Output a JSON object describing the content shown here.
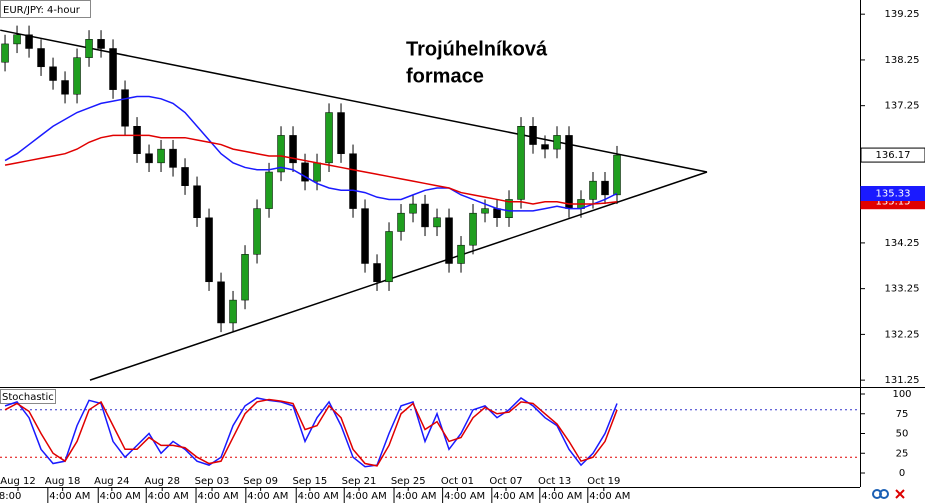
{
  "chart_data": [
    {
      "type": "candlestick",
      "title": "EUR/JPY: 4-hour",
      "annotation": [
        "Trojúhelníková",
        "formace"
      ],
      "up_color": "#1f9e1f",
      "down_color": "#000000",
      "xlim": [
        -0.42,
        71.25
      ],
      "ylim": [
        131.1,
        139.56
      ],
      "yticks": [
        131.25,
        132.25,
        133.25,
        134.25,
        137.25,
        138.25,
        139.25
      ],
      "open": [
        138.2,
        138.6,
        138.8,
        138.5,
        138.1,
        137.8,
        137.5,
        138.3,
        138.7,
        138.5,
        137.6,
        136.8,
        136.2,
        136.0,
        136.3,
        135.9,
        135.5,
        134.8,
        133.4,
        132.5,
        133.0,
        134.0,
        135.0,
        135.8,
        136.6,
        136.0,
        135.6,
        136.0,
        137.1,
        136.2,
        135.0,
        133.8,
        133.4,
        134.5,
        134.9,
        135.1,
        134.6,
        134.8,
        133.8,
        134.2,
        134.9,
        135.0,
        134.8,
        135.2,
        136.8,
        136.4,
        136.3,
        136.6,
        135.0,
        135.2,
        135.6,
        135.3
      ],
      "high": [
        138.8,
        139.0,
        139.0,
        138.7,
        138.3,
        138.0,
        138.5,
        138.9,
        138.9,
        138.7,
        137.8,
        137.0,
        136.4,
        136.5,
        136.5,
        136.1,
        135.7,
        135.0,
        133.6,
        133.2,
        134.2,
        135.2,
        136.0,
        136.8,
        136.8,
        136.2,
        136.2,
        137.3,
        137.3,
        136.4,
        135.2,
        134.0,
        134.7,
        135.1,
        135.3,
        135.3,
        135.0,
        135.0,
        134.4,
        135.1,
        135.2,
        135.2,
        135.4,
        137.0,
        137.0,
        136.6,
        136.8,
        136.8,
        135.4,
        135.8,
        135.8,
        136.37
      ],
      "low": [
        138.0,
        138.4,
        138.3,
        137.9,
        137.6,
        137.3,
        137.3,
        138.1,
        138.3,
        137.4,
        136.6,
        136.0,
        135.8,
        135.8,
        135.7,
        135.3,
        134.6,
        133.2,
        132.3,
        132.3,
        132.8,
        133.8,
        134.8,
        135.6,
        135.8,
        135.4,
        135.4,
        135.8,
        136.0,
        134.8,
        133.6,
        133.2,
        133.2,
        134.3,
        134.7,
        134.4,
        134.4,
        133.6,
        133.6,
        134.0,
        134.7,
        134.6,
        134.6,
        135.0,
        136.2,
        136.1,
        136.1,
        134.8,
        134.8,
        135.0,
        135.1,
        135.1
      ],
      "close": [
        138.6,
        138.8,
        138.5,
        138.1,
        137.8,
        137.5,
        138.3,
        138.7,
        138.5,
        137.6,
        136.8,
        136.2,
        136.0,
        136.3,
        135.9,
        135.5,
        134.8,
        133.4,
        132.5,
        133.0,
        134.0,
        135.0,
        135.8,
        136.6,
        136.0,
        135.6,
        136.0,
        137.1,
        136.2,
        135.0,
        133.8,
        133.4,
        134.5,
        134.9,
        135.1,
        134.6,
        134.8,
        133.8,
        134.2,
        134.9,
        135.0,
        134.8,
        135.2,
        136.8,
        136.4,
        136.3,
        136.6,
        135.0,
        135.2,
        135.6,
        135.3,
        136.17
      ],
      "lines": [
        {
          "color": "#1a1aff",
          "values": [
            136.05,
            136.2,
            136.4,
            136.6,
            136.8,
            136.95,
            137.1,
            137.2,
            137.3,
            137.35,
            137.4,
            137.45,
            137.45,
            137.4,
            137.3,
            137.1,
            136.8,
            136.5,
            136.2,
            136.0,
            135.9,
            135.85,
            135.85,
            135.9,
            135.85,
            135.7,
            135.55,
            135.45,
            135.4,
            135.4,
            135.35,
            135.25,
            135.2,
            135.2,
            135.3,
            135.4,
            135.45,
            135.45,
            135.3,
            135.2,
            135.1,
            135.0,
            134.95,
            134.95,
            134.95,
            135.0,
            135.05,
            135.0,
            135.0,
            135.1,
            135.2,
            135.33
          ]
        },
        {
          "color": "#e00000",
          "values": [
            135.95,
            136.0,
            136.05,
            136.1,
            136.15,
            136.2,
            136.3,
            136.45,
            136.55,
            136.6,
            136.6,
            136.6,
            136.6,
            136.55,
            136.55,
            136.55,
            136.5,
            136.45,
            136.4,
            136.3,
            136.25,
            136.2,
            136.15,
            136.15,
            136.1,
            136.05,
            136.0,
            135.95,
            135.9,
            135.85,
            135.8,
            135.75,
            135.7,
            135.65,
            135.6,
            135.55,
            135.5,
            135.45,
            135.35,
            135.3,
            135.25,
            135.2,
            135.15,
            135.15,
            135.1,
            135.15,
            135.15,
            135.1,
            135.1,
            135.1,
            135.12,
            135.15
          ]
        }
      ],
      "trendlines": [
        {
          "start": [
            -0.4,
            138.9
          ],
          "end": [
            58.5,
            135.8
          ]
        },
        {
          "start": [
            7.08,
            131.25
          ],
          "end": [
            58.5,
            135.8
          ]
        }
      ]
    },
    {
      "type": "line",
      "title": "Stochastic",
      "xlim": [
        -0.42,
        71.25
      ],
      "ylim": [
        -17.7,
        107.6
      ],
      "yticks": [
        0,
        25,
        50,
        75,
        100
      ],
      "levels": [
        {
          "value": 80,
          "color": "#3333cc"
        },
        {
          "value": 20,
          "color": "#e00000"
        }
      ],
      "series": [
        {
          "color": "#1a1aff",
          "values": [
            85,
            90,
            70,
            30,
            12,
            15,
            60,
            92,
            88,
            40,
            20,
            35,
            50,
            25,
            40,
            30,
            15,
            10,
            20,
            60,
            85,
            95,
            92,
            90,
            85,
            40,
            70,
            90,
            60,
            20,
            8,
            10,
            50,
            85,
            90,
            40,
            75,
            30,
            50,
            80,
            85,
            70,
            80,
            95,
            85,
            70,
            60,
            30,
            10,
            25,
            50,
            88
          ]
        },
        {
          "color": "#e00000",
          "values": [
            80,
            88,
            78,
            50,
            25,
            15,
            40,
            80,
            90,
            60,
            30,
            30,
            45,
            35,
            35,
            32,
            20,
            12,
            15,
            45,
            75,
            90,
            93,
            91,
            88,
            55,
            60,
            85,
            70,
            30,
            12,
            9,
            35,
            75,
            88,
            55,
            65,
            40,
            45,
            70,
            83,
            75,
            77,
            90,
            88,
            75,
            62,
            40,
            15,
            20,
            40,
            80
          ]
        }
      ],
      "xticks": [
        {
          "value": 1.08,
          "label": "Aug 12"
        },
        {
          "value": 4.8,
          "label": "Aug 18"
        },
        {
          "value": 8.9,
          "label": "Aug 24"
        },
        {
          "value": 13.1,
          "label": "Aug 28"
        },
        {
          "value": 17.25,
          "label": "Sep 03"
        },
        {
          "value": 21.3,
          "label": "Sep 09"
        },
        {
          "value": 25.4,
          "label": "Sep 15"
        },
        {
          "value": 29.5,
          "label": "Sep 21"
        },
        {
          "value": 33.6,
          "label": "Sep 25"
        },
        {
          "value": 37.7,
          "label": "Oct 01"
        },
        {
          "value": 41.75,
          "label": "Oct 07"
        },
        {
          "value": 45.8,
          "label": "Oct 13"
        },
        {
          "value": 49.9,
          "label": "Oct 19"
        }
      ],
      "xticks2": [
        {
          "value": 0.42,
          "label": "8:00"
        },
        {
          "value": 5.4,
          "label": "4:00 AM"
        },
        {
          "value": 9.6,
          "label": "4:00 AM"
        },
        {
          "value": 13.6,
          "label": "4:00 AM"
        },
        {
          "value": 17.75,
          "label": "4:00 AM"
        },
        {
          "value": 21.9,
          "label": "4:00 AM"
        },
        {
          "value": 26.1,
          "label": "4:00 AM"
        },
        {
          "value": 30.1,
          "label": "4:00 AM"
        },
        {
          "value": 34.25,
          "label": "4:00 AM"
        },
        {
          "value": 38.3,
          "label": "4:00 AM"
        },
        {
          "value": 42.4,
          "label": "4:00 AM"
        },
        {
          "value": 46.4,
          "label": "4:00 AM"
        },
        {
          "value": 50.4,
          "label": "4:00 AM"
        }
      ]
    }
  ]
}
